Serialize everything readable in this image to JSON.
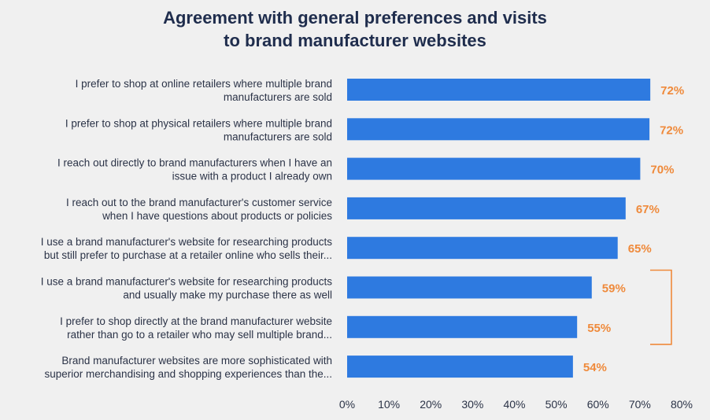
{
  "chart_data": {
    "type": "bar",
    "orientation": "horizontal",
    "title": [
      "Agreement with general preferences and visits",
      "to brand manufacturer websites"
    ],
    "categories": [
      [
        "I prefer to shop at online retailers where multiple brand",
        "manufacturers are sold"
      ],
      [
        "I prefer to shop at physical retailers where multiple brand",
        "manufacturers are sold"
      ],
      [
        "I reach out directly to brand manufacturers when I have an",
        "issue with a product I already own"
      ],
      [
        "I reach out to the brand manufacturer's customer service",
        "when I have questions about products or policies"
      ],
      [
        "I use a brand manufacturer's website for researching products",
        "but still prefer to purchase at a retailer online who sells their..."
      ],
      [
        "I use a brand manufacturer's website for researching products",
        "and usually make my purchase there as well"
      ],
      [
        "I prefer to shop directly at the brand manufacturer website",
        "rather than go to a retailer who may sell multiple brand..."
      ],
      [
        "Brand manufacturer websites are more sophisticated with",
        "superior merchandising and shopping experiences than the..."
      ]
    ],
    "values": [
      72.5,
      72.3,
      70.1,
      66.6,
      64.7,
      58.5,
      55.0,
      54.0
    ],
    "value_labels": [
      "72%",
      "72%",
      "70%",
      "67%",
      "65%",
      "59%",
      "55%",
      "54%"
    ],
    "xlim": [
      0,
      80
    ],
    "x_ticks": [
      0,
      10,
      20,
      30,
      40,
      50,
      60,
      70,
      80
    ],
    "x_tick_labels": [
      "0%",
      "10%",
      "20%",
      "30%",
      "40%",
      "50%",
      "60%",
      "70%",
      "80%"
    ],
    "grid": false,
    "bar_color": "#2e7ae0",
    "value_label_color": "#ef8a3b",
    "bracket": {
      "from_index": 5,
      "to_index": 6,
      "color": "#ef8a3b"
    }
  }
}
